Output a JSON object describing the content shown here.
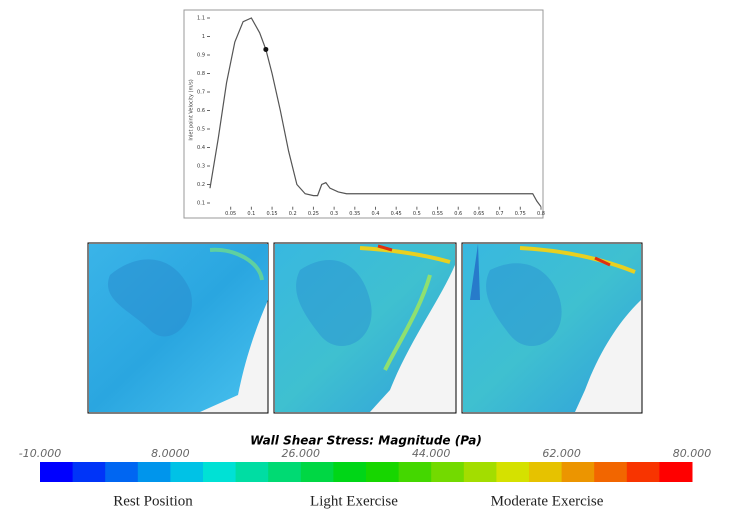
{
  "chart_data": {
    "type": "line",
    "y_label": "Inlet point Velocity (m/s)",
    "x": [
      0,
      0.02,
      0.04,
      0.06,
      0.08,
      0.1,
      0.12,
      0.135,
      0.15,
      0.17,
      0.19,
      0.21,
      0.23,
      0.25,
      0.26,
      0.27,
      0.28,
      0.29,
      0.31,
      0.33,
      0.4,
      0.5,
      0.6,
      0.7,
      0.78,
      0.79,
      0.8
    ],
    "series": [
      {
        "color": "#555555",
        "values": [
          0.18,
          0.45,
          0.75,
          0.97,
          1.08,
          1.1,
          1.02,
          0.93,
          0.8,
          0.6,
          0.38,
          0.2,
          0.15,
          0.14,
          0.14,
          0.2,
          0.21,
          0.18,
          0.16,
          0.15,
          0.15,
          0.15,
          0.15,
          0.15,
          0.15,
          0.11,
          0.08
        ]
      }
    ],
    "marker": {
      "x": 0.135,
      "y": 0.93,
      "color": "#111111"
    },
    "xlim": [
      0,
      0.8
    ],
    "xticks": [
      0.05,
      0.1,
      0.15,
      0.2,
      0.25,
      0.3,
      0.35,
      0.4,
      0.45,
      0.5,
      0.55,
      0.6,
      0.65,
      0.7,
      0.75,
      0.8
    ],
    "ylim": [
      0.08,
      1.12
    ],
    "yticks": [
      0.1,
      0.2,
      0.3,
      0.4,
      0.5,
      0.6,
      0.7,
      0.8,
      0.9,
      1,
      1.1
    ]
  },
  "colorbar": {
    "title": "Wall Shear Stress: Magnitude (Pa)",
    "range": [
      -10,
      80
    ],
    "ticks": [
      {
        "value": -10,
        "label": "-10.000"
      },
      {
        "value": 8,
        "label": "8.0000"
      },
      {
        "value": 26,
        "label": "26.000"
      },
      {
        "value": 44,
        "label": "44.000"
      },
      {
        "value": 62,
        "label": "62.000"
      },
      {
        "value": 80,
        "label": "80.000"
      }
    ]
  },
  "captions": [
    "Rest Position",
    "Light Exercise",
    "Moderate Exercise"
  ]
}
